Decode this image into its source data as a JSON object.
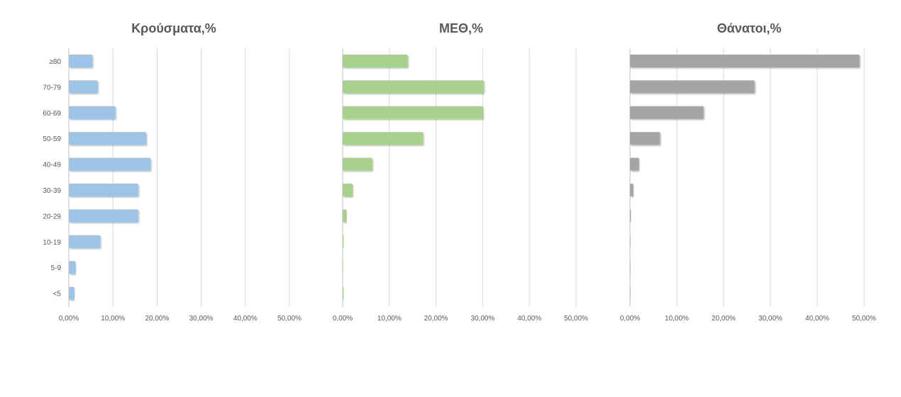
{
  "chart_data": [
    {
      "type": "bar",
      "orientation": "horizontal",
      "title": "Κρούσματα,%",
      "categories": [
        "≥80",
        "70-79",
        "60-69",
        "50-59",
        "40-49",
        "30-39",
        "20-29",
        "10-19",
        "5-9",
        "<5"
      ],
      "values": [
        0.053,
        0.065,
        0.105,
        0.175,
        0.185,
        0.157,
        0.157,
        0.071,
        0.015,
        0.012
      ],
      "xlim": [
        0,
        0.5
      ],
      "xticks": [
        "0,00%",
        "10,00%",
        "20,00%",
        "30,00%",
        "40,00%",
        "50,00%"
      ],
      "grid": true,
      "color": "#9dc3e6"
    },
    {
      "type": "bar",
      "orientation": "horizontal",
      "title": "ΜΕΘ,%",
      "categories": [
        "≥80",
        "70-79",
        "60-69",
        "50-59",
        "40-49",
        "30-39",
        "20-29",
        "10-19",
        "5-9",
        "<5"
      ],
      "values": [
        0.139,
        0.302,
        0.3,
        0.172,
        0.063,
        0.021,
        0.008,
        0.002,
        0.001,
        0.002
      ],
      "xlim": [
        0,
        0.5
      ],
      "xticks": [
        "0,00%",
        "10,00%",
        "20,00%",
        "30,00%",
        "40,00%",
        "50,00%"
      ],
      "grid": true,
      "color": "#a9d18e"
    },
    {
      "type": "bar",
      "orientation": "horizontal",
      "title": "Θάνατοι,%",
      "categories": [
        "≥80",
        "70-79",
        "60-69",
        "50-59",
        "40-49",
        "30-39",
        "20-29",
        "10-19",
        "5-9",
        "<5"
      ],
      "values": [
        0.49,
        0.266,
        0.157,
        0.064,
        0.019,
        0.007,
        0.002,
        0.0005,
        0.0003,
        0.0003
      ],
      "xlim": [
        0,
        0.5
      ],
      "xticks": [
        "0,00%",
        "10,00%",
        "20,00%",
        "30,00%",
        "40,00%",
        "50,00%"
      ],
      "grid": true,
      "color": "#a5a5a5"
    }
  ]
}
